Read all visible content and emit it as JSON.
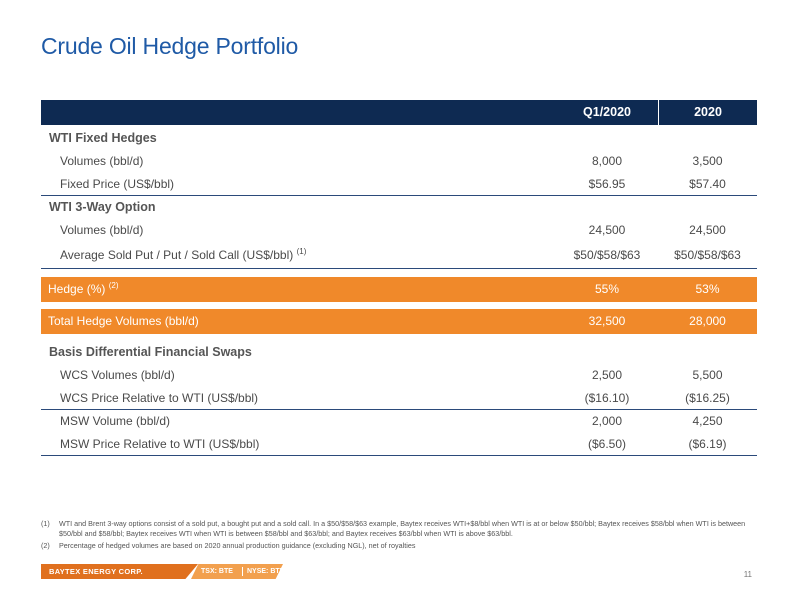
{
  "title": "Crude Oil Hedge Portfolio",
  "table": {
    "columns": [
      "Q1/2020",
      "2020"
    ],
    "wti_fixed": {
      "heading": "WTI Fixed Hedges",
      "rows": [
        {
          "label": "Volumes (bbl/d)",
          "q1": "8,000",
          "fy": "3,500"
        },
        {
          "label": "Fixed Price (US$/bbl)",
          "q1": "$56.95",
          "fy": "$57.40"
        }
      ]
    },
    "wti_3way": {
      "heading": "WTI 3-Way Option",
      "rows": [
        {
          "label": "Volumes (bbl/d)",
          "q1": "24,500",
          "fy": "24,500"
        },
        {
          "label": "Average Sold Put / Put / Sold Call (US$/bbl)",
          "sup": "(1)",
          "q1": "$50/$58/$63",
          "fy": "$50/$58/$63"
        }
      ]
    },
    "hedge_pct": {
      "label": "Hedge (%)",
      "sup": "(2)",
      "q1": "55%",
      "fy": "53%"
    },
    "total": {
      "label": "Total Hedge Volumes (bbl/d)",
      "q1": "32,500",
      "fy": "28,000"
    },
    "basis": {
      "heading": "Basis Differential Financial Swaps",
      "rows": [
        {
          "label": "WCS Volumes (bbl/d)",
          "q1": "2,500",
          "fy": "5,500"
        },
        {
          "label": "WCS Price Relative to WTI (US$/bbl)",
          "q1": "($16.10)",
          "fy": "($16.25)"
        },
        {
          "label": "MSW Volume (bbl/d)",
          "q1": "2,000",
          "fy": "4,250"
        },
        {
          "label": "MSW Price Relative to WTI (US$/bbl)",
          "q1": "($6.50)",
          "fy": "($6.19)"
        }
      ]
    }
  },
  "footnotes": [
    {
      "num": "(1)",
      "text": "WTI and Brent 3-way options consist of a sold put, a bought put and a sold call. In a $50/$58/$63 example, Baytex receives WTI+$8/bbl when WTI is at or below $50/bbl; Baytex receives $58/bbl when WTI is between $50/bbl and $58/bbl; Baytex receives WTI when WTI is between $58/bbl and $63/bbl; and Baytex receives $63/bbl when WTI is above $63/bbl."
    },
    {
      "num": "(2)",
      "text": "Percentage of hedged volumes are based on 2020 annual production guidance (excluding NGL), net of royalties"
    }
  ],
  "footer": {
    "brand": "BAYTEX ENERGY CORP.",
    "tsx": "TSX: BTE",
    "nyse": "NYSE: BTE",
    "page": "11"
  },
  "colors": {
    "navy": "#0e2a52",
    "orange": "#f0892a",
    "title_blue": "#1f5aa6"
  }
}
